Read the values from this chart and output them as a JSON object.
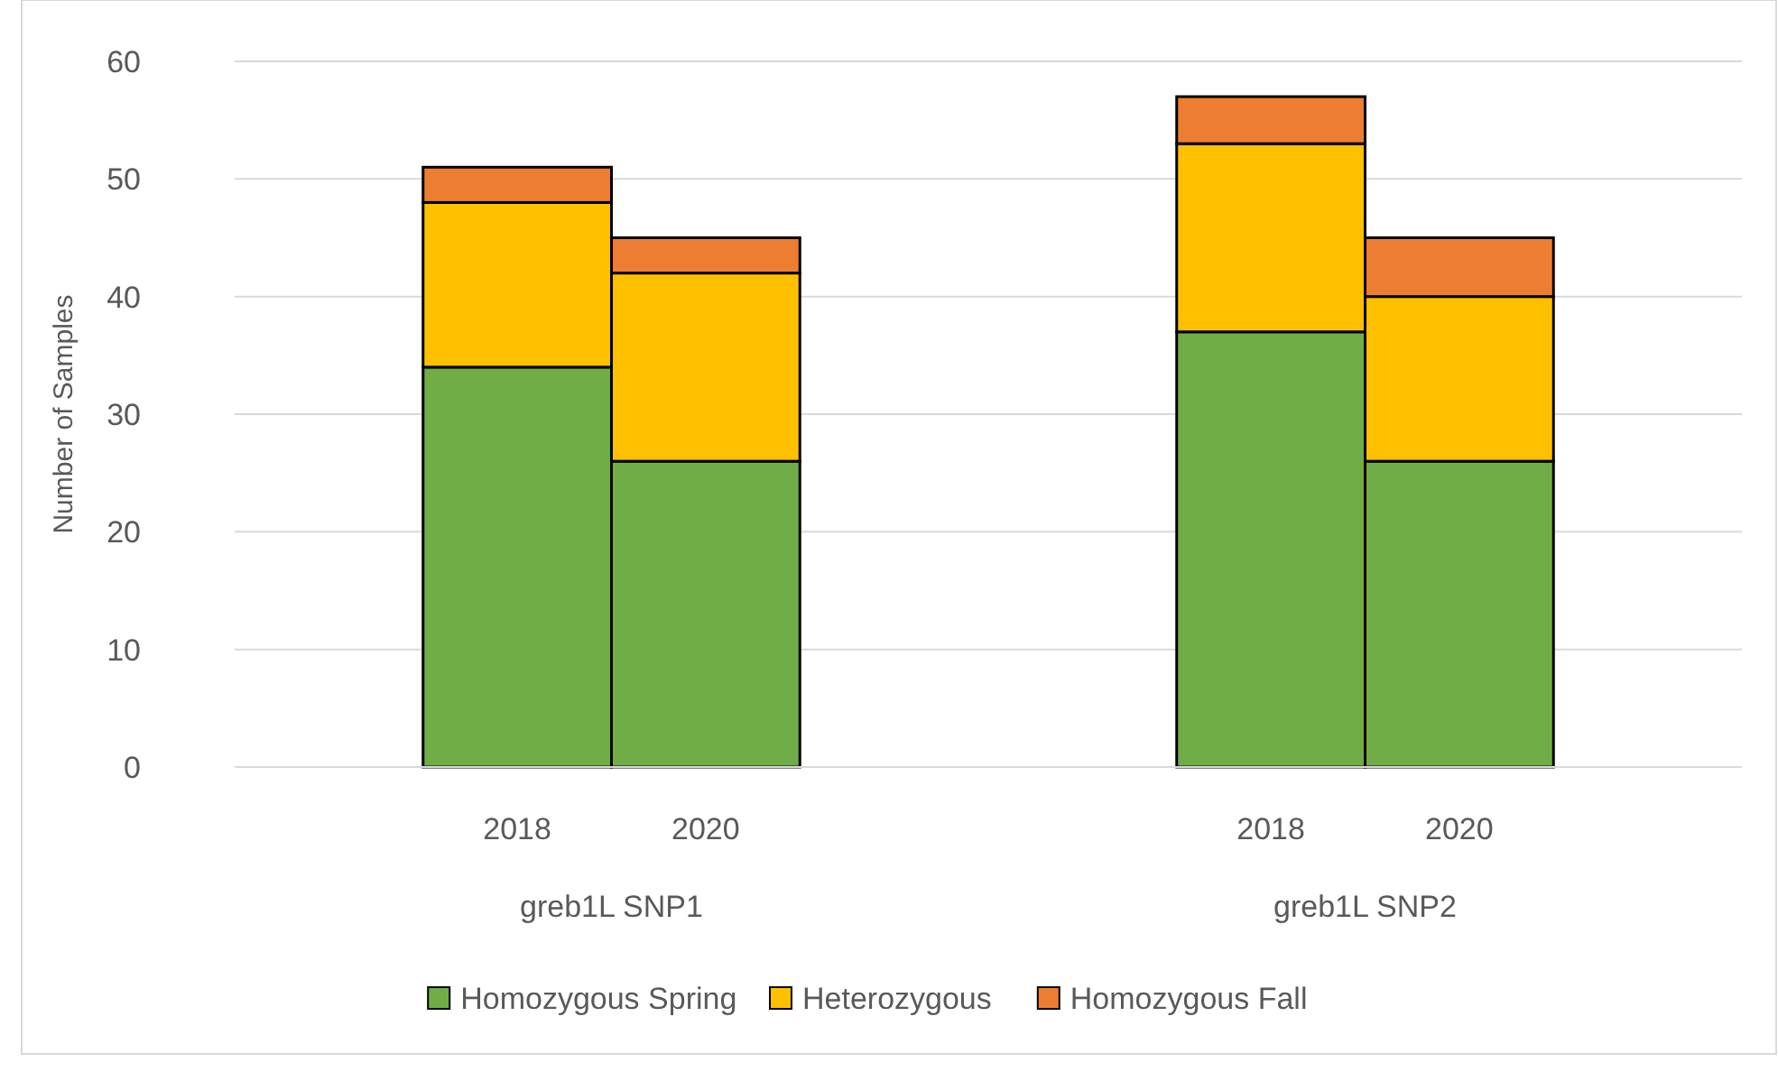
{
  "chart_data": {
    "type": "bar",
    "stacked": true,
    "ylabel": "Number of Samples",
    "categories": [
      "2018",
      "2020",
      "2018",
      "2020"
    ],
    "annotations": [
      "greb1L SNP1",
      "greb1L SNP2"
    ],
    "series": [
      {
        "name": "Homozygous Spring",
        "color": "#70ad47",
        "values": [
          34,
          26,
          37,
          26
        ]
      },
      {
        "name": "Heterozygous",
        "color": "#ffc000",
        "values": [
          14,
          16,
          16,
          14
        ]
      },
      {
        "name": "Homozygous Fall",
        "color": "#ed7d31",
        "values": [
          3,
          3,
          4,
          5
        ]
      }
    ],
    "ylim": [
      0,
      60
    ],
    "yticks": [
      0,
      10,
      20,
      30,
      40,
      50,
      60
    ],
    "grid": "y",
    "legend": "bottom"
  }
}
